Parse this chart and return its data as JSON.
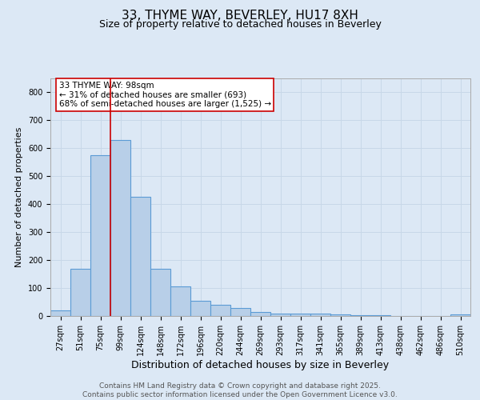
{
  "title": "33, THYME WAY, BEVERLEY, HU17 8XH",
  "subtitle": "Size of property relative to detached houses in Beverley",
  "xlabel": "Distribution of detached houses by size in Beverley",
  "ylabel": "Number of detached properties",
  "bar_labels": [
    "27sqm",
    "51sqm",
    "75sqm",
    "99sqm",
    "124sqm",
    "148sqm",
    "172sqm",
    "196sqm",
    "220sqm",
    "244sqm",
    "269sqm",
    "293sqm",
    "317sqm",
    "341sqm",
    "365sqm",
    "389sqm",
    "413sqm",
    "438sqm",
    "462sqm",
    "486sqm",
    "510sqm"
  ],
  "bar_heights": [
    20,
    170,
    575,
    630,
    425,
    170,
    105,
    55,
    40,
    30,
    15,
    10,
    10,
    8,
    5,
    3,
    3,
    1,
    1,
    0,
    5
  ],
  "bar_color": "#b8cfe8",
  "bar_edgecolor": "#5b9bd5",
  "bar_linewidth": 0.8,
  "vline_color": "#cc0000",
  "vline_linewidth": 1.2,
  "annotation_text": "33 THYME WAY: 98sqm\n← 31% of detached houses are smaller (693)\n68% of semi-detached houses are larger (1,525) →",
  "annotation_box_color": "#ffffff",
  "annotation_box_edgecolor": "#cc0000",
  "annotation_fontsize": 7.5,
  "ylim": [
    0,
    850
  ],
  "yticks": [
    0,
    100,
    200,
    300,
    400,
    500,
    600,
    700,
    800
  ],
  "grid_color": "#c8d8e8",
  "background_color": "#dce8f5",
  "title_fontsize": 11,
  "subtitle_fontsize": 9,
  "xlabel_fontsize": 9,
  "ylabel_fontsize": 8,
  "tick_fontsize": 7,
  "footer_text": "Contains HM Land Registry data © Crown copyright and database right 2025.\nContains public sector information licensed under the Open Government Licence v3.0.",
  "footer_fontsize": 6.5,
  "bar_width": 1.0
}
